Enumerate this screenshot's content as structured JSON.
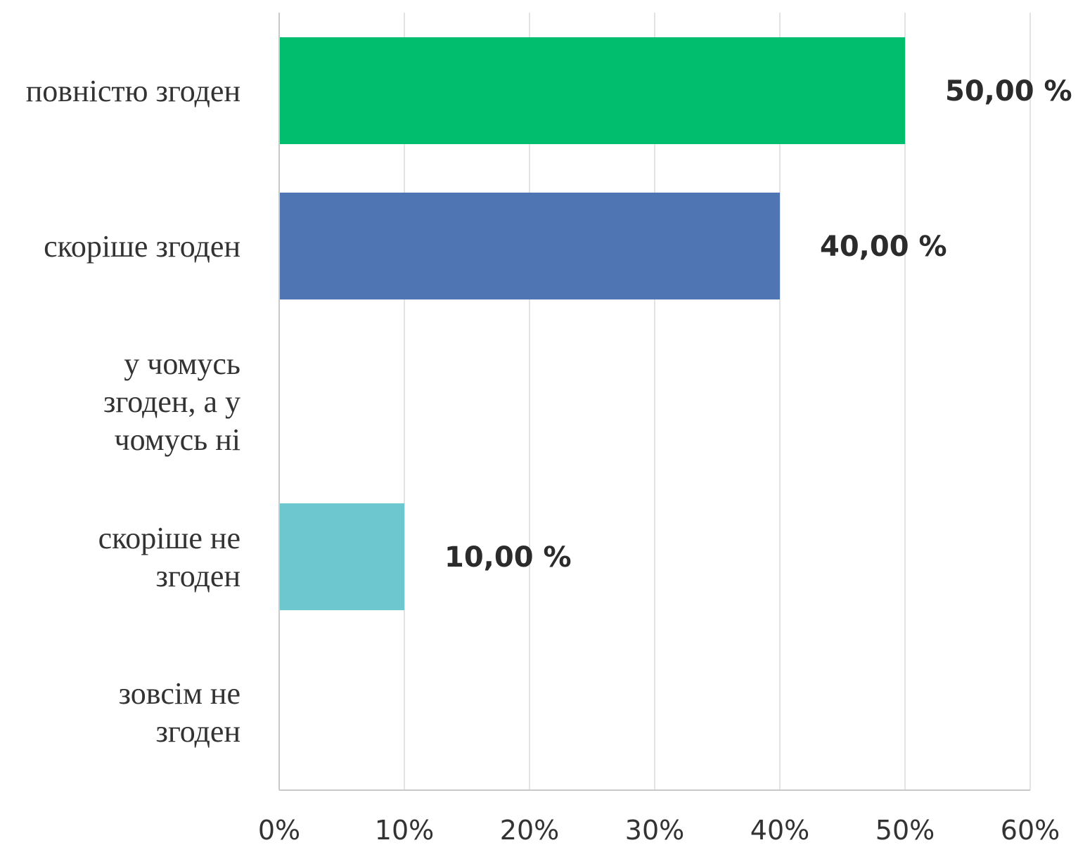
{
  "chart_data": {
    "type": "bar",
    "orientation": "horizontal",
    "title": "",
    "xlabel": "",
    "ylabel": "",
    "categories": [
      [
        "повністю згоден"
      ],
      [
        "скоріше згоден"
      ],
      [
        "у чомусь",
        "згоден, а у",
        "чомусь ні"
      ],
      [
        "скоріше не",
        "згоден"
      ],
      [
        "зовсім не",
        "згоден"
      ]
    ],
    "values": [
      50,
      40,
      0,
      10,
      0
    ],
    "data_labels": [
      "50,00 %",
      "40,00 %",
      "",
      "10,00 %",
      ""
    ],
    "bar_colors": [
      "#00BE6E",
      "#4F76B3",
      "#4F76B3",
      "#6CC8CE",
      "#6CC8CE"
    ],
    "xlim": [
      0,
      60
    ],
    "x_ticks": [
      0,
      10,
      20,
      30,
      40,
      50,
      60
    ],
    "x_tick_labels": [
      "0%",
      "10%",
      "20%",
      "30%",
      "40%",
      "50%",
      "60%"
    ],
    "grid": true,
    "legend": "none"
  }
}
